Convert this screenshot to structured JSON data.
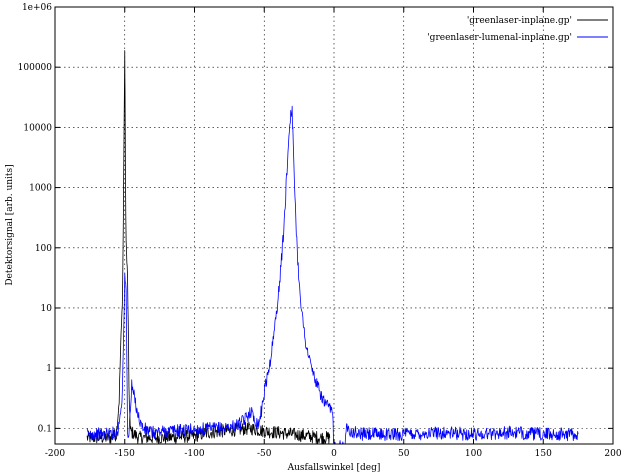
{
  "chart_data": {
    "type": "line",
    "title": "",
    "xlabel": "Ausfallswinkel [deg]",
    "ylabel": "Detektorsignal [arb. units]",
    "xlim": [
      -200,
      200
    ],
    "ylim": [
      0.055,
      1000000
    ],
    "y_scale": "log",
    "grid": true,
    "legend_position": "top-right",
    "x_ticks": [
      -200,
      -150,
      -100,
      -50,
      0,
      50,
      100,
      150,
      200
    ],
    "x_tick_labels": [
      "-200",
      "-150",
      "-100",
      "-50",
      "0",
      "50",
      "100",
      "150",
      "200"
    ],
    "y_ticks": [
      0.1,
      1,
      10,
      100,
      1000,
      10000,
      100000,
      1000000
    ],
    "y_tick_labels": [
      "0.1",
      "1",
      "10",
      "100",
      "1000",
      "10000",
      "100000",
      "1e+06"
    ],
    "series": [
      {
        "name": "'greenlaser-inplane.gp'",
        "color": "#000000",
        "x": [
          -177,
          -160,
          -156,
          -154,
          -153,
          -152,
          -151.5,
          -151,
          -150.5,
          -150,
          -149.8,
          -149.5,
          -149,
          -148.5,
          -148,
          -147.5,
          -147,
          -146,
          -140,
          -120,
          -100,
          -90,
          -80,
          -70,
          -60,
          -50,
          -40,
          -30,
          -20,
          -10,
          -5,
          -3
        ],
        "y": [
          0.07,
          0.07,
          0.08,
          0.3,
          2,
          8,
          25,
          300,
          10000,
          150000,
          40000,
          1500,
          120,
          60,
          30,
          5,
          0.5,
          0.09,
          0.07,
          0.07,
          0.075,
          0.085,
          0.09,
          0.095,
          0.1,
          0.09,
          0.085,
          0.08,
          0.075,
          0.07,
          0.07,
          0.07
        ]
      },
      {
        "name": "'greenlaser-lumenal-inplane.gp'",
        "color": "#0000ff",
        "x": [
          -177,
          -165,
          -155,
          -152,
          -151,
          -150,
          -149,
          -148,
          -147,
          -146,
          -145,
          -144,
          -142,
          -140,
          -137,
          -130,
          -120,
          -100,
          -80,
          -70,
          -65,
          -62,
          -60,
          -58,
          -56,
          -54,
          -52,
          -50,
          -48,
          -46,
          -44,
          -42,
          -40,
          -38,
          -36,
          -35,
          -34,
          -33,
          -32,
          -31,
          -30.5,
          -30,
          -29.5,
          -29,
          -28,
          -27,
          -26,
          -24,
          -22,
          -20,
          -18,
          -16,
          -14,
          -12,
          -10,
          -8,
          -6,
          -4,
          -2,
          -1,
          0,
          1,
          2,
          5,
          8,
          9,
          10,
          12,
          15,
          20,
          30,
          50,
          75,
          100,
          125,
          150,
          175
        ],
        "y": [
          0.08,
          0.08,
          0.085,
          0.3,
          2,
          30,
          20,
          0.09,
          0.08,
          0.2,
          0.5,
          0.4,
          0.25,
          0.15,
          0.1,
          0.085,
          0.09,
          0.095,
          0.1,
          0.11,
          0.13,
          0.16,
          0.2,
          0.16,
          0.13,
          0.12,
          0.2,
          0.4,
          0.7,
          1.2,
          2.5,
          6,
          15,
          50,
          200,
          500,
          1500,
          4000,
          9000,
          18000,
          20000,
          18000,
          8000,
          3000,
          800,
          200,
          60,
          15,
          5,
          2.5,
          1.5,
          1,
          0.7,
          0.5,
          0.4,
          0.3,
          0.25,
          0.22,
          0.2,
          0.17,
          0.05,
          0.05,
          0.05,
          0.05,
          0.05,
          0.1,
          0.12,
          0.09,
          0.085,
          0.08,
          0.08,
          0.08,
          0.085,
          0.08,
          0.085,
          0.08,
          0.08
        ]
      }
    ]
  }
}
